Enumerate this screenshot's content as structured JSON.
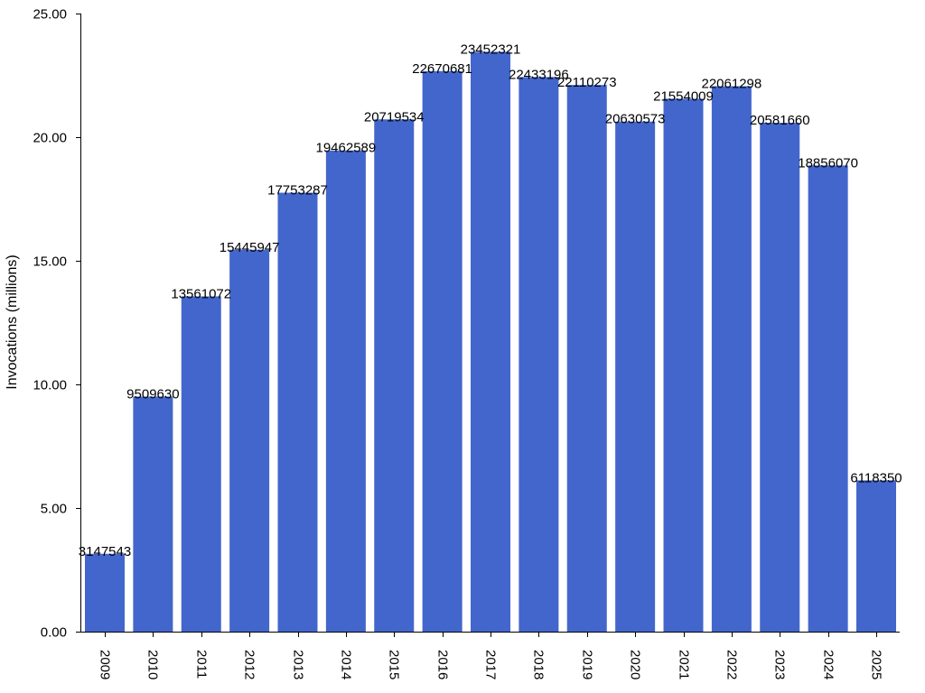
{
  "chart_data": {
    "type": "bar",
    "title": "",
    "xlabel": "",
    "ylabel": "Invocations (millions)",
    "ylim": [
      0,
      25
    ],
    "yticks": [
      "0.00",
      "5.00",
      "10.00",
      "15.00",
      "20.00",
      "25.00"
    ],
    "grid": false,
    "bar_color": "#4366cc",
    "categories": [
      "2009",
      "2010",
      "2011",
      "2012",
      "2013",
      "2014",
      "2015",
      "2016",
      "2017",
      "2018",
      "2019",
      "2020",
      "2021",
      "2022",
      "2023",
      "2024",
      "2025"
    ],
    "values": [
      3147543,
      9509630,
      13561072,
      15445947,
      17753287,
      19462589,
      20719534,
      22670681,
      23452321,
      22433196,
      22110273,
      20630573,
      21554009,
      22061298,
      20581660,
      18856070,
      6118350
    ],
    "data_labels": [
      "3147543",
      "9509630",
      "13561072",
      "15445947",
      "17753287",
      "19462589",
      "20719534",
      "22670681",
      "23452321",
      "22433196",
      "22110273",
      "20630573",
      "21554009",
      "22061298",
      "20581660",
      "18856070",
      "6118350"
    ]
  }
}
